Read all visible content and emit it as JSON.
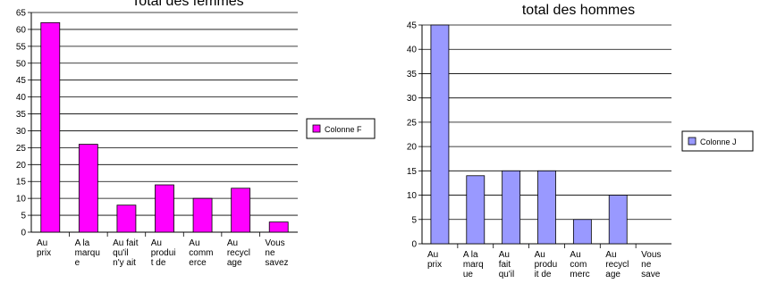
{
  "chart_data": [
    {
      "type": "bar",
      "title": "Total des femmes",
      "categories": [
        [
          "Au",
          "prix"
        ],
        [
          "A la",
          "marqu",
          "e"
        ],
        [
          "Au fait",
          "qu'il",
          "n'y ait"
        ],
        [
          "Au",
          "produi",
          "t de"
        ],
        [
          "Au",
          "comm",
          "erce"
        ],
        [
          "Au",
          "recycl",
          "age"
        ],
        [
          "Vous",
          "ne",
          "savez"
        ]
      ],
      "values": [
        62,
        26,
        8,
        14,
        10,
        13,
        3
      ],
      "ylim": [
        0,
        65
      ],
      "ytick_step": 5,
      "legend": "Colonne F",
      "legend_position": "right",
      "bar_color": "#ff00ff",
      "grid": true
    },
    {
      "type": "bar",
      "title": "total des hommes",
      "categories": [
        [
          "Au",
          "prix"
        ],
        [
          "A la",
          "marq",
          "ue"
        ],
        [
          "Au",
          "fait",
          "qu'il"
        ],
        [
          "Au",
          "produ",
          "it de"
        ],
        [
          "Au",
          "com",
          "merc"
        ],
        [
          "Au",
          "recycl",
          "age"
        ],
        [
          "Vous",
          "ne",
          "save"
        ]
      ],
      "values": [
        45,
        14,
        15,
        15,
        5,
        10,
        0
      ],
      "ylim": [
        0,
        45
      ],
      "ytick_step": 5,
      "legend": "Colonne J",
      "legend_position": "right",
      "bar_color": "#9999ff",
      "grid": true
    }
  ]
}
